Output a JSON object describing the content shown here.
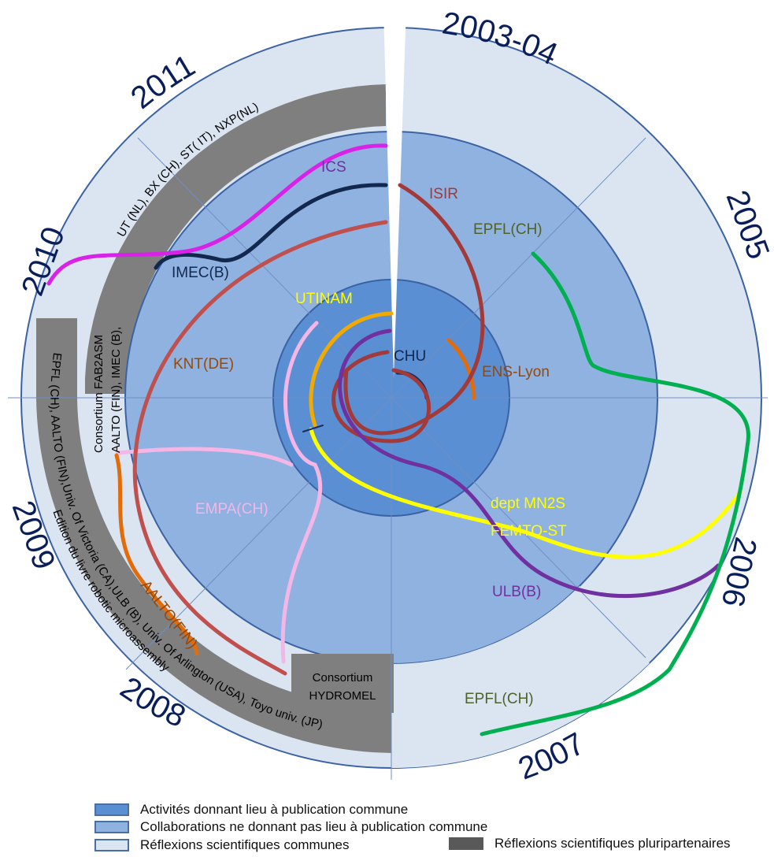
{
  "colors": {
    "outer_ring": "#dbe5f2",
    "middle_ring": "#8fb2e0",
    "inner_disk": "#5a8fd3",
    "band_gray": "#7f7f7f",
    "ring_stroke": "#3b62a3",
    "year_text": "#0a1e5a"
  },
  "years": {
    "y2003": "2003-04",
    "y2005": "2005",
    "y2006": "2006",
    "y2007": "2007",
    "y2008": "2008",
    "y2009": "2009",
    "y2010": "2010",
    "y2011": "2011"
  },
  "partners": {
    "chu": "CHU",
    "ens_lyon": "ENS-Lyon",
    "isir": "ISIR",
    "epfl_2005": "EPFL(CH)",
    "utinam": "UTINAM",
    "ics": "ICS",
    "imec": "IMEC(B)",
    "knt": "KNT(DE)",
    "empa": "EMPA(CH)",
    "aalto": "AALTO(FIN)",
    "dept_mn2s": "dept MN2S",
    "femto": "FEMTO-ST",
    "ulb": "ULB(B)",
    "epfl_2007": "EPFL(CH)"
  },
  "bands": {
    "b2011": "UT (NL), BX (CH), ST( IT), NXP(NL)",
    "b2010_line1": "Consortium FAB2ASM",
    "b2010_line2": "AALTO (FIN), IMEC (B),",
    "b2009_line1": "EPFL (CH), AALTO (FIN),Univ. Of Victoria (CA),ULB (B), Univ. Of Arlington (USA), Toyo univ. (JP)",
    "b2009_line2": "Edition du livre robotic microassembly",
    "hydromel_1": "Consortium",
    "hydromel_2": "HYDROMEL"
  },
  "legend": {
    "item1": "Activités donnant lieu à publication commune",
    "item2": "Collaborations ne donnant pas lieu à publication commune",
    "item3": "Réflexions scientifiques communes",
    "item4": "Réflexions scientifiques pluripartenaires"
  }
}
